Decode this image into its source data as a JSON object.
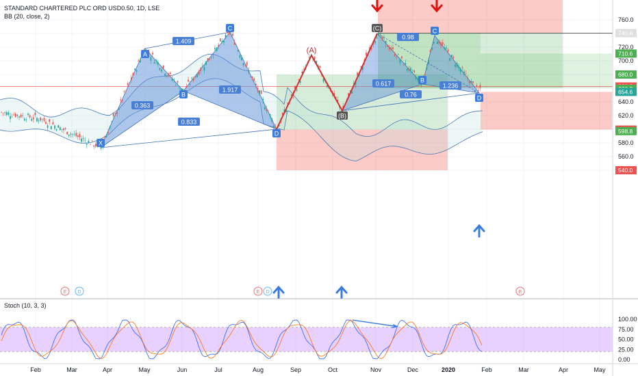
{
  "legend": {
    "title": "STANDARD CHARTERED PLC ORD USD0.50, 1D, LSE",
    "bb": "BB (20, close, 2)",
    "stoch": "Stoch (10, 3, 3)"
  },
  "colors": {
    "green_zone": "#4caf50",
    "red_zone": "#f44336",
    "pattern_fill": "#5b8fd8",
    "abcd_line": "#d32f2f",
    "down_arrow": "#e01010",
    "up_arrow": "#3b7ddd",
    "stoch_band": "#cc99ff"
  },
  "price_axis": {
    "ticks": [
      "760.0",
      "740.0",
      "720.0",
      "700.0",
      "680.0",
      "660.0",
      "640.0",
      "620.0",
      "600.0",
      "580.0",
      "560.0",
      "540.0"
    ]
  },
  "price_tags": [
    {
      "text": "740.6",
      "bg": "#e0e0e0",
      "fg": "#131722",
      "price": 740.6
    },
    {
      "text": "710.6",
      "bg": "#4caf50",
      "fg": "#ffffff",
      "price": 710.6
    },
    {
      "text": "680.0",
      "bg": "#4caf50",
      "fg": "#ffffff",
      "price": 680.0
    },
    {
      "text": "660.2",
      "bg": "#ef5350",
      "fg": "#ffffff",
      "price": 662.5
    },
    {
      "text": "660.0",
      "bg": "#4caf50",
      "fg": "#ffffff",
      "price": 659.0
    },
    {
      "text": "654.6",
      "bg": "#26a69a",
      "fg": "#ffffff",
      "price": 654.6
    },
    {
      "text": "599.4",
      "bg": "#ef5350",
      "fg": "#ffffff",
      "price": 599.4
    },
    {
      "text": "598.8",
      "bg": "#4caf50",
      "fg": "#ffffff",
      "price": 597.2
    },
    {
      "text": "540.0",
      "bg": "#ef5350",
      "fg": "#ffffff",
      "price": 540.0
    }
  ],
  "stoch_axis": {
    "ticks": [
      "100.00",
      "75.00",
      "50.00",
      "25.00",
      "0.00"
    ]
  },
  "time_axis": {
    "labels": [
      "Feb",
      "Mar",
      "Apr",
      "May",
      "Jun",
      "Jul",
      "Aug",
      "Sep",
      "Oct",
      "Nov",
      "Dec",
      "2020",
      "Feb",
      "Mar",
      "Apr",
      "May"
    ]
  },
  "pattern_points": [
    "X",
    "A",
    "B",
    "C",
    "D",
    "(A)",
    "(B)",
    "(C)",
    "A",
    "B",
    "C",
    "D"
  ],
  "ratios": [
    "1.409",
    "0.363",
    "1.917",
    "0.833",
    "0.98",
    "0.617",
    "1.236",
    "0.76"
  ],
  "event_markers": [
    "E",
    "D",
    "E",
    "D",
    "E"
  ]
}
